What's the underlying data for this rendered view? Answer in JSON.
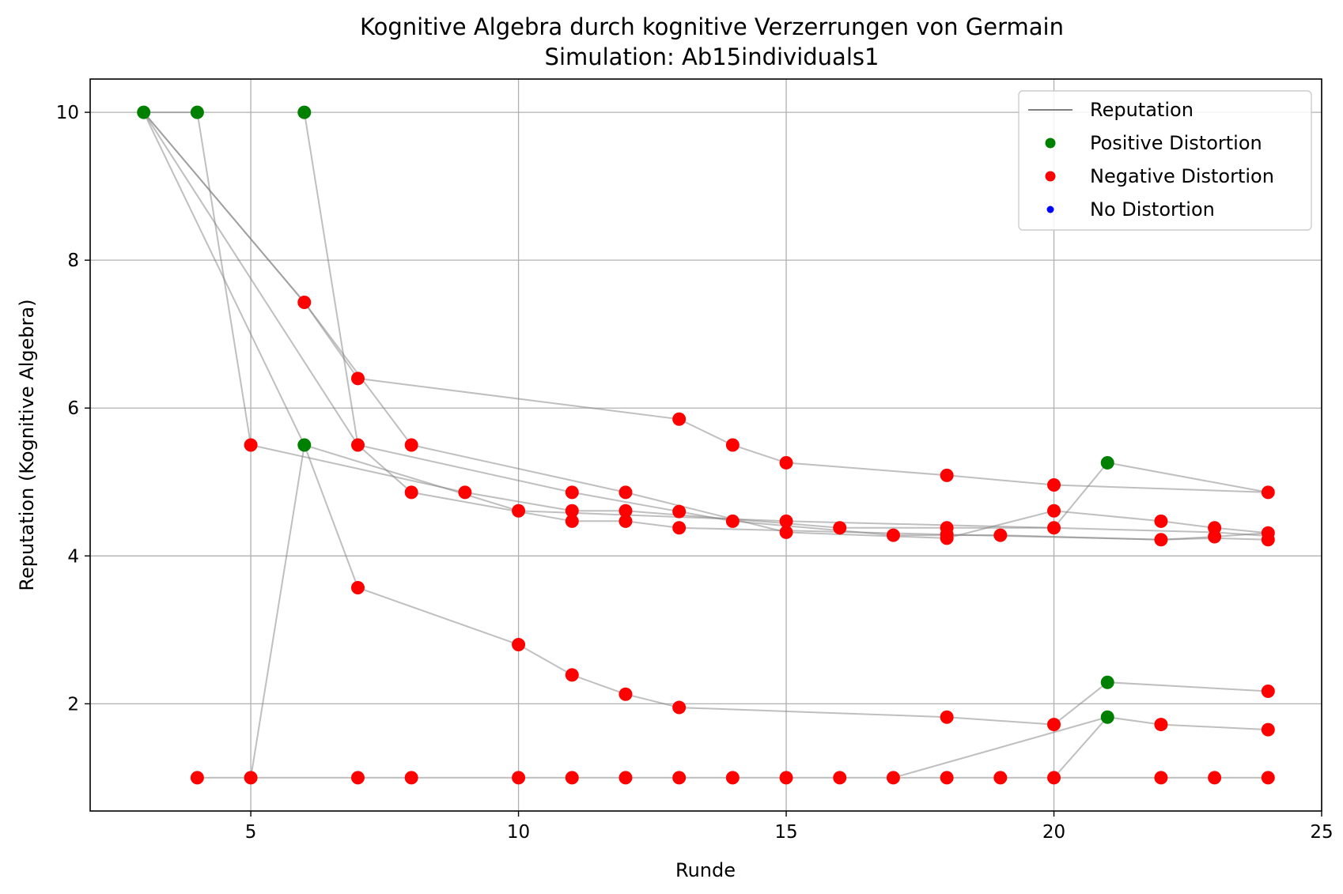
{
  "chart_data": {
    "type": "scatter",
    "title": "Kognitive Algebra durch kognitive Verzerrungen von Germain",
    "subtitle": "Simulation: Ab15individuals1",
    "xlabel": "Runde",
    "ylabel": "Reputation (Kognitive Algebra)",
    "xlim": [
      2,
      25
    ],
    "ylim": [
      0.55,
      10.45
    ],
    "xticks": [
      5,
      10,
      15,
      20,
      25
    ],
    "yticks": [
      2,
      4,
      6,
      8,
      10
    ],
    "grid": true,
    "legend_position": "top-right",
    "legend": [
      {
        "label": "Reputation",
        "kind": "line",
        "color": "#808080"
      },
      {
        "label": "Positive Distortion",
        "kind": "marker",
        "color": "#008000"
      },
      {
        "label": "Negative Distortion",
        "kind": "marker",
        "color": "#ff0000"
      },
      {
        "label": "No Distortion",
        "kind": "marker",
        "color": "#0000ff"
      }
    ],
    "colors": {
      "positive": "#008000",
      "negative": "#ff0000",
      "none": "#0000ff",
      "line": "#808080"
    },
    "series": [
      {
        "values": [
          [
            3,
            10
          ],
          [
            4,
            10
          ]
        ]
      },
      {
        "values": [
          [
            3,
            10
          ],
          [
            6,
            7.43
          ],
          [
            7,
            6.4
          ],
          [
            13,
            5.85
          ],
          [
            14,
            5.5
          ],
          [
            15,
            5.26
          ],
          [
            18,
            5.09
          ],
          [
            20,
            4.96
          ],
          [
            24,
            4.86
          ]
        ]
      },
      {
        "values": [
          [
            3,
            10
          ],
          [
            6,
            5.5
          ],
          [
            7,
            3.57
          ],
          [
            10,
            2.8
          ],
          [
            11,
            2.39
          ],
          [
            12,
            2.13
          ],
          [
            13,
            1.95
          ],
          [
            18,
            1.82
          ],
          [
            20,
            1.72
          ],
          [
            21,
            2.29
          ],
          [
            24,
            2.17
          ]
        ]
      },
      {
        "values": [
          [
            3,
            10
          ],
          [
            7,
            5.5
          ],
          [
            8,
            4.86
          ],
          [
            11,
            4.47
          ],
          [
            12,
            4.47
          ],
          [
            13,
            4.38
          ],
          [
            18,
            4.29
          ],
          [
            22,
            4.22
          ],
          [
            23,
            4.24
          ],
          [
            24,
            4.22
          ]
        ]
      },
      {
        "values": [
          [
            4,
            10
          ],
          [
            5,
            5.5
          ],
          [
            9,
            4.86
          ],
          [
            11,
            4.61
          ],
          [
            12,
            4.61
          ],
          [
            15,
            4.44
          ],
          [
            16,
            4.38
          ],
          [
            18,
            4.38
          ],
          [
            20,
            4.38
          ],
          [
            23,
            4.32
          ],
          [
            24,
            4.27
          ]
        ]
      },
      {
        "values": [
          [
            6,
            10
          ],
          [
            7,
            5.5
          ],
          [
            11,
            4.86
          ],
          [
            13,
            4.6
          ],
          [
            14,
            4.47
          ],
          [
            17,
            4.28
          ],
          [
            19,
            4.28
          ],
          [
            22,
            4.22
          ],
          [
            23,
            4.26
          ],
          [
            24,
            4.31
          ]
        ]
      },
      {
        "values": [
          [
            3,
            10
          ],
          [
            6,
            7.43
          ],
          [
            8,
            5.5
          ],
          [
            12,
            4.86
          ],
          [
            15,
            4.32
          ],
          [
            18,
            4.24
          ],
          [
            20,
            4.61
          ],
          [
            22,
            4.47
          ],
          [
            23,
            4.38
          ],
          [
            24,
            4.31
          ]
        ]
      },
      {
        "values": [
          [
            4,
            1
          ],
          [
            5,
            1
          ],
          [
            7,
            1
          ],
          [
            8,
            1
          ],
          [
            10,
            1
          ],
          [
            11,
            1
          ],
          [
            12,
            1
          ],
          [
            13,
            1
          ],
          [
            14,
            1
          ],
          [
            15,
            1
          ],
          [
            16,
            1
          ],
          [
            17,
            1
          ],
          [
            18,
            1
          ],
          [
            19,
            1
          ],
          [
            20,
            1
          ],
          [
            22,
            1
          ],
          [
            23,
            1
          ],
          [
            24,
            1
          ]
        ]
      },
      {
        "values": [
          [
            5,
            1
          ],
          [
            6,
            5.5
          ],
          [
            10,
            4.61
          ],
          [
            15,
            4.47
          ],
          [
            20,
            4.38
          ],
          [
            21,
            5.26
          ],
          [
            24,
            4.86
          ]
        ]
      },
      {
        "values": [
          [
            17,
            1
          ],
          [
            21,
            1.82
          ],
          [
            22,
            1.72
          ],
          [
            24,
            1.65
          ]
        ]
      },
      {
        "values": [
          [
            20,
            1
          ],
          [
            21,
            1.82
          ]
        ]
      }
    ],
    "points": {
      "positive": [
        [
          3,
          10
        ],
        [
          4,
          10
        ],
        [
          6,
          10
        ],
        [
          6,
          5.5
        ],
        [
          21,
          5.26
        ],
        [
          21,
          2.29
        ],
        [
          21,
          1.82
        ]
      ],
      "negative": [
        [
          6,
          7.43
        ],
        [
          7,
          6.4
        ],
        [
          5,
          5.5
        ],
        [
          7,
          5.5
        ],
        [
          8,
          5.5
        ],
        [
          13,
          5.85
        ],
        [
          14,
          5.5
        ],
        [
          15,
          5.26
        ],
        [
          18,
          5.09
        ],
        [
          20,
          4.96
        ],
        [
          24,
          4.86
        ],
        [
          8,
          4.86
        ],
        [
          9,
          4.86
        ],
        [
          11,
          4.86
        ],
        [
          12,
          4.86
        ],
        [
          10,
          4.61
        ],
        [
          11,
          4.61
        ],
        [
          12,
          4.61
        ],
        [
          13,
          4.6
        ],
        [
          20,
          4.61
        ],
        [
          11,
          4.47
        ],
        [
          12,
          4.47
        ],
        [
          14,
          4.47
        ],
        [
          15,
          4.47
        ],
        [
          22,
          4.47
        ],
        [
          13,
          4.38
        ],
        [
          16,
          4.38
        ],
        [
          18,
          4.38
        ],
        [
          20,
          4.38
        ],
        [
          23,
          4.38
        ],
        [
          15,
          4.32
        ],
        [
          17,
          4.28
        ],
        [
          18,
          4.29
        ],
        [
          19,
          4.28
        ],
        [
          18,
          4.24
        ],
        [
          22,
          4.22
        ],
        [
          23,
          4.26
        ],
        [
          24,
          4.31
        ],
        [
          24,
          4.22
        ],
        [
          7,
          3.57
        ],
        [
          10,
          2.8
        ],
        [
          11,
          2.39
        ],
        [
          12,
          2.13
        ],
        [
          13,
          1.95
        ],
        [
          18,
          1.82
        ],
        [
          20,
          1.72
        ],
        [
          22,
          1.72
        ],
        [
          24,
          2.17
        ],
        [
          24,
          1.65
        ],
        [
          4,
          1
        ],
        [
          5,
          1
        ],
        [
          7,
          1
        ],
        [
          8,
          1
        ],
        [
          10,
          1
        ],
        [
          11,
          1
        ],
        [
          12,
          1
        ],
        [
          13,
          1
        ],
        [
          14,
          1
        ],
        [
          15,
          1
        ],
        [
          16,
          1
        ],
        [
          17,
          1
        ],
        [
          18,
          1
        ],
        [
          19,
          1
        ],
        [
          20,
          1
        ],
        [
          22,
          1
        ],
        [
          23,
          1
        ],
        [
          24,
          1
        ]
      ],
      "none": []
    }
  }
}
